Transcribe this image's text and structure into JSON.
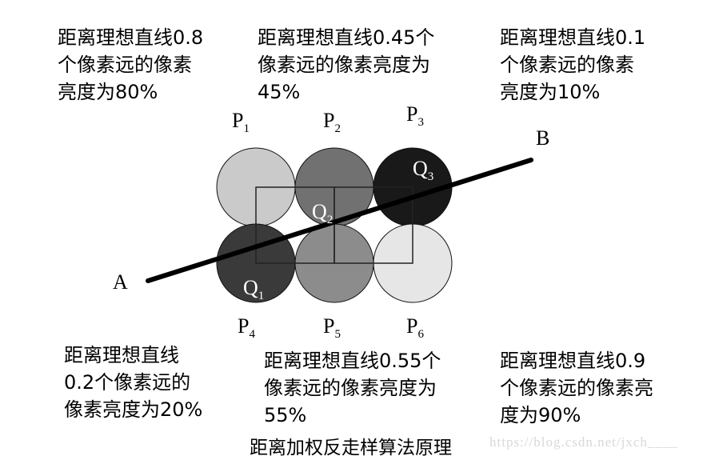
{
  "notes": {
    "top_left": [
      "距离理想直线0.8",
      "个像素远的像素",
      "亮度为80%"
    ],
    "top_mid": [
      "距离理想直线0.45个",
      "像素远的像素亮度为",
      "45%"
    ],
    "top_right": [
      "距离理想直线0.1",
      "个像素远的像素",
      "亮度为10%"
    ],
    "bottom_left": [
      "距离理想直线",
      "0.2个像素远的",
      "像素亮度为20%"
    ],
    "bottom_mid": [
      "距离理想直线0.55个",
      "像素远的像素亮度为",
      "55%"
    ],
    "bottom_right": [
      "距离理想直线0.9",
      "个像素远的像素亮",
      "度为90%"
    ]
  },
  "pixels": {
    "P1": {
      "letter": "P",
      "sub": "1",
      "fill": "#cacaca"
    },
    "P2": {
      "letter": "P",
      "sub": "2",
      "fill": "#717171"
    },
    "P3": {
      "letter": "P",
      "sub": "3",
      "fill": "#191919"
    },
    "P4": {
      "letter": "P",
      "sub": "4",
      "fill": "#3a3a3a"
    },
    "P5": {
      "letter": "P",
      "sub": "5",
      "fill": "#8c8c8c"
    },
    "P6": {
      "letter": "P",
      "sub": "6",
      "fill": "#e6e6e6"
    }
  },
  "points": {
    "A": "A",
    "B": "B",
    "Q1": {
      "letter": "Q",
      "sub": "1"
    },
    "Q2": {
      "letter": "Q",
      "sub": "2"
    },
    "Q3": {
      "letter": "Q",
      "sub": "3"
    }
  },
  "caption": "距离加权反走样算法原理",
  "watermark": "https://blog.csdn.net/jxch____"
}
